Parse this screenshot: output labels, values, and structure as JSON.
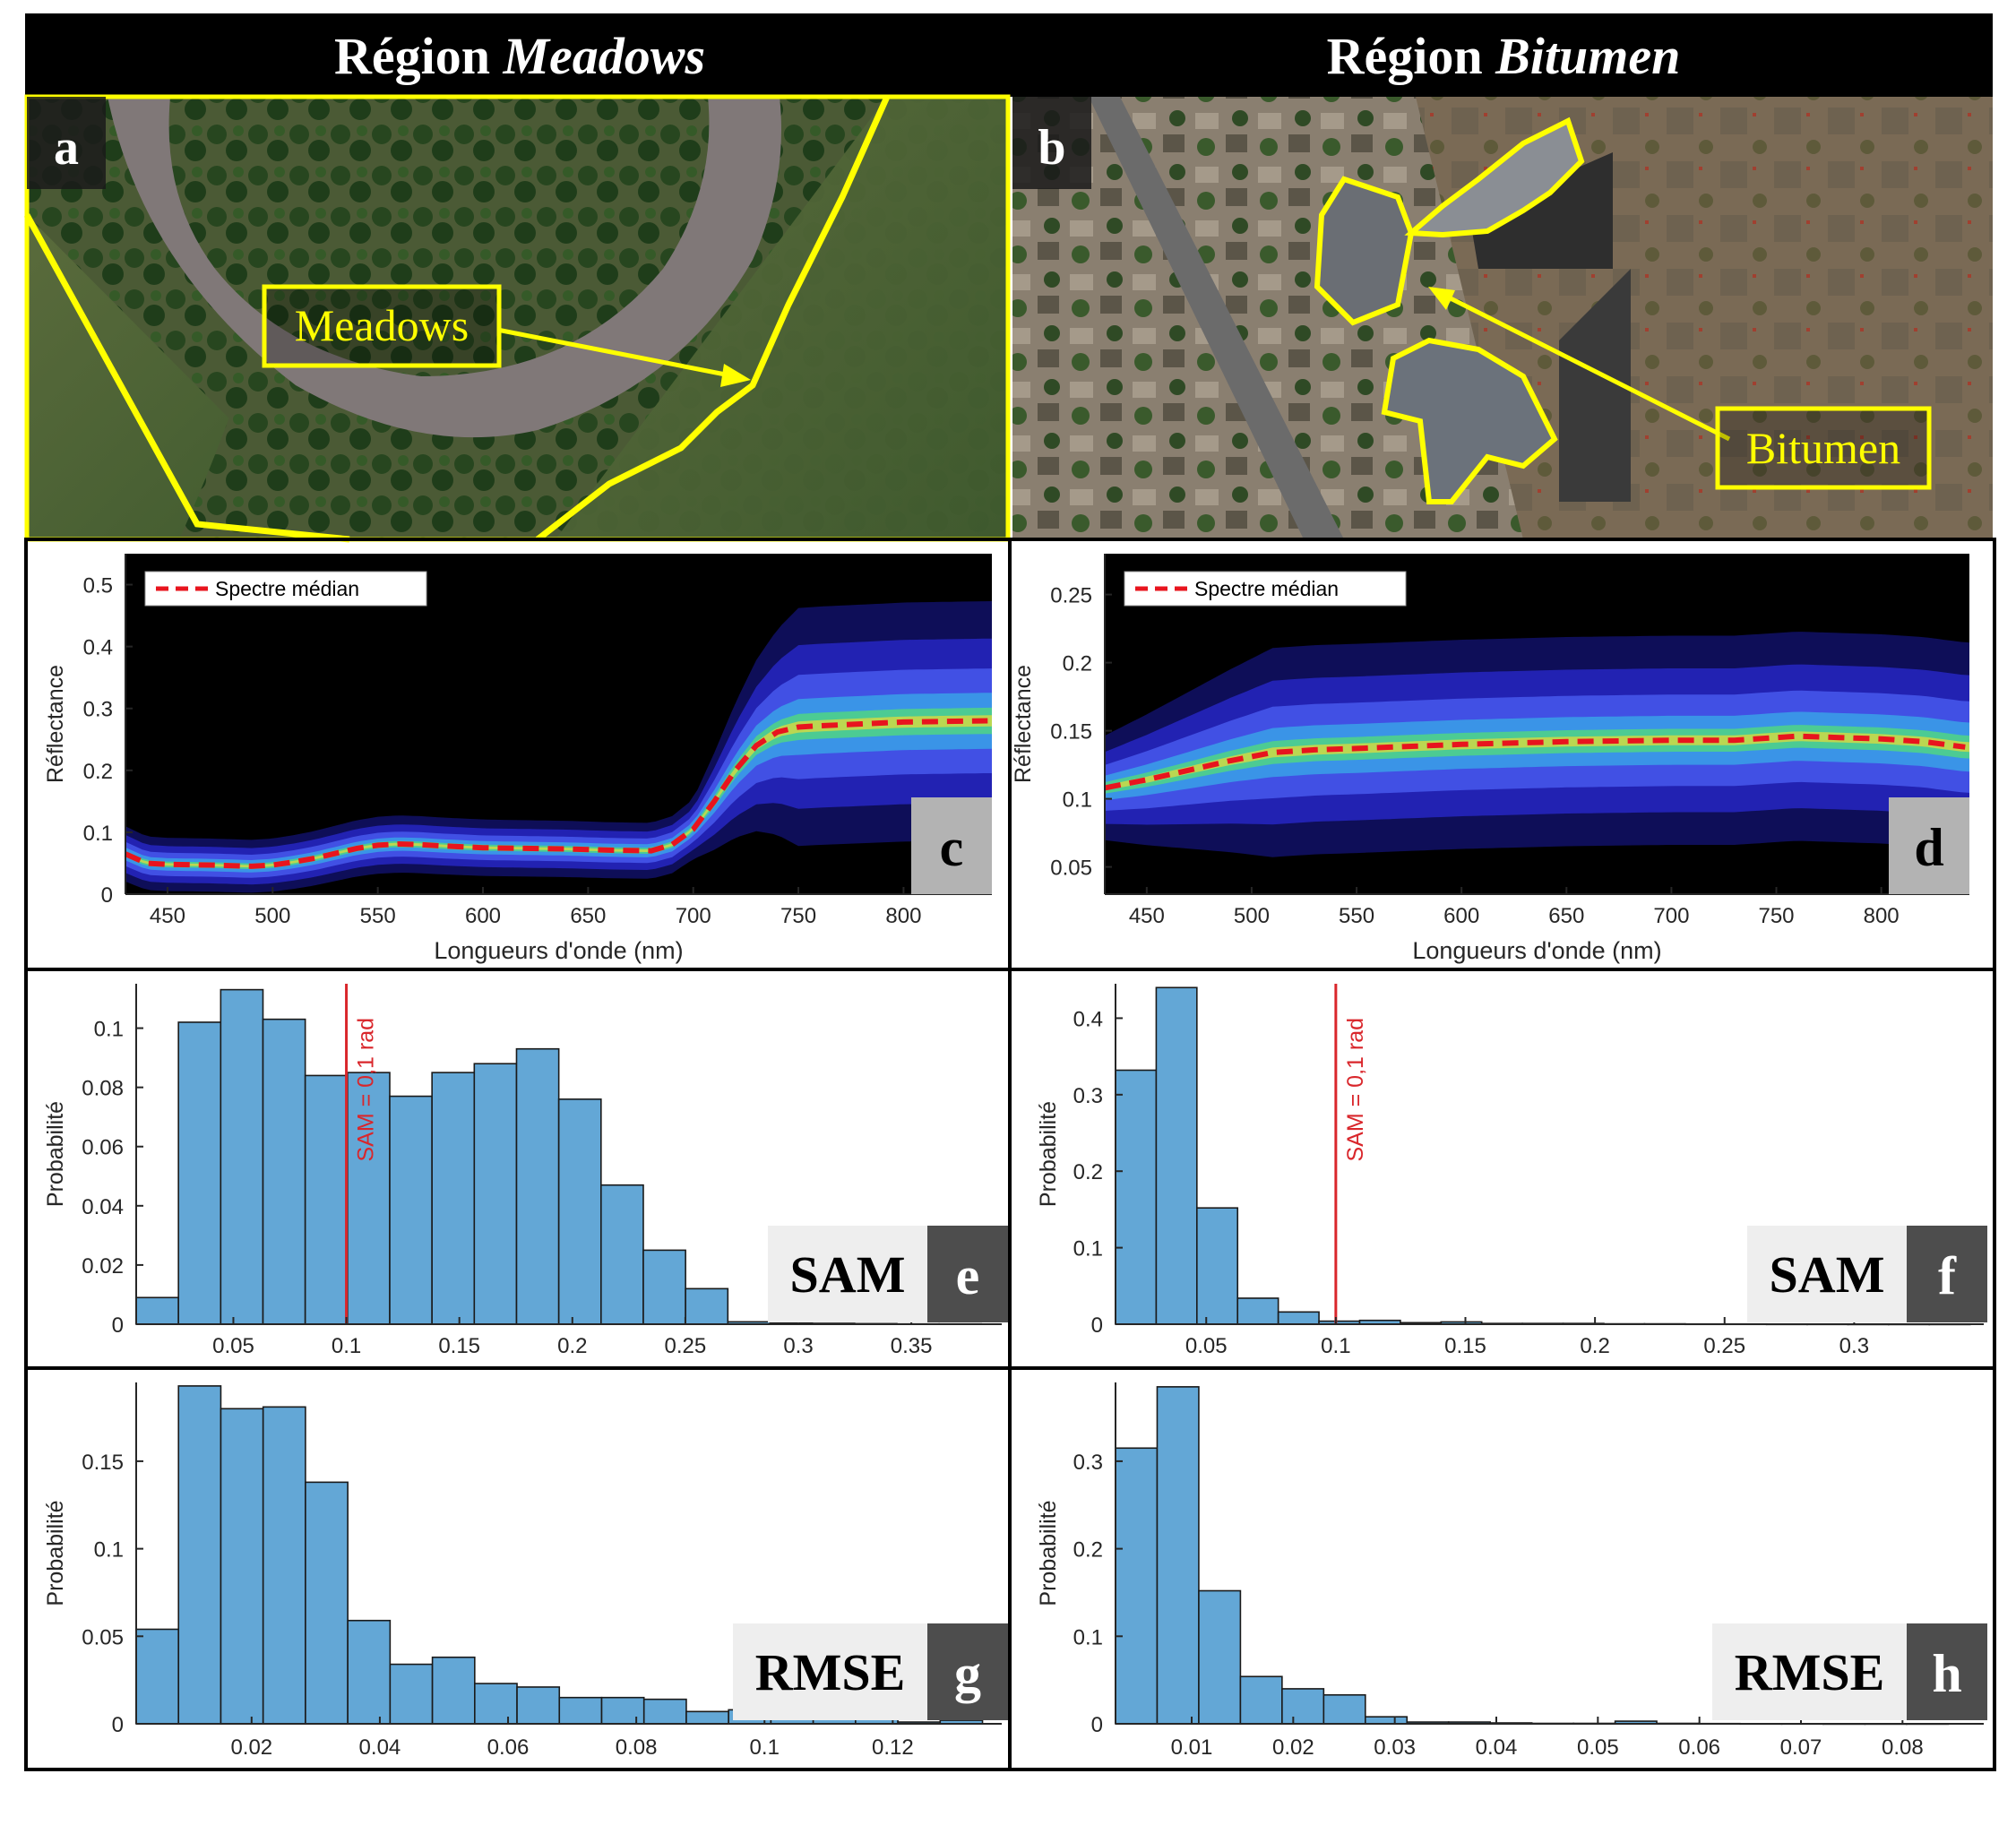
{
  "headers": {
    "left": {
      "prefix": "Région",
      "name": "Meadows"
    },
    "right": {
      "prefix": "Région",
      "name": "Bitumen"
    }
  },
  "panel_letters": {
    "a": "a",
    "b": "b",
    "c": "c",
    "d": "d",
    "e": "e",
    "f": "f",
    "g": "g",
    "h": "h"
  },
  "image_labels": {
    "meadows": "Meadows",
    "bitumen": "Bitumen"
  },
  "metric_tags": {
    "sam": "SAM",
    "rmse": "RMSE"
  },
  "colors": {
    "header_bg": "#000000",
    "header_text": "#ffffff",
    "annotation_yellow": "#ffff00",
    "median_line": "#e8141e",
    "histogram_bar": "#63a7d6",
    "threshold_line": "#d9262b",
    "letter_box_light": "#b3b3b3",
    "letter_box_dark": "#4d4d4d"
  },
  "chart_data": [
    {
      "panel": "c",
      "type": "heatmap",
      "title": "",
      "xlabel": "Longueurs d'onde (nm)",
      "ylabel": "Réflectance",
      "xlim": [
        430,
        842
      ],
      "ylim": [
        0,
        0.55
      ],
      "xticks": [
        450,
        500,
        550,
        600,
        650,
        700,
        750,
        800
      ],
      "yticks": [
        0,
        0.1,
        0.2,
        0.3,
        0.4,
        0.5
      ],
      "ytick_labels": [
        "0",
        "0.1",
        "0.2",
        "0.3",
        "0.4",
        "0.5"
      ],
      "legend": {
        "label": "Spectre médian",
        "placement": "top-left"
      },
      "median": {
        "x": [
          430,
          440,
          450,
          470,
          490,
          500,
          510,
          520,
          530,
          540,
          550,
          560,
          570,
          580,
          600,
          620,
          640,
          660,
          680,
          690,
          700,
          710,
          720,
          730,
          740,
          750,
          760,
          780,
          800,
          820,
          840
        ],
        "y": [
          0.065,
          0.05,
          0.048,
          0.047,
          0.045,
          0.047,
          0.052,
          0.058,
          0.066,
          0.074,
          0.079,
          0.081,
          0.08,
          0.078,
          0.075,
          0.074,
          0.073,
          0.071,
          0.07,
          0.08,
          0.105,
          0.15,
          0.2,
          0.24,
          0.262,
          0.27,
          0.272,
          0.275,
          0.278,
          0.279,
          0.28
        ]
      }
    },
    {
      "panel": "d",
      "type": "heatmap",
      "title": "",
      "xlabel": "Longueurs d'onde (nm)",
      "ylabel": "Réflectance",
      "xlim": [
        430,
        842
      ],
      "ylim": [
        0.03,
        0.28
      ],
      "xticks": [
        450,
        500,
        550,
        600,
        650,
        700,
        750,
        800
      ],
      "yticks": [
        0.05,
        0.1,
        0.15,
        0.2,
        0.25
      ],
      "ytick_labels": [
        "0.05",
        "0.1",
        "0.15",
        "0.2",
        "0.25"
      ],
      "legend": {
        "label": "Spectre médian",
        "placement": "top-left"
      },
      "median": {
        "x": [
          430,
          450,
          470,
          490,
          510,
          530,
          550,
          600,
          650,
          700,
          730,
          760,
          780,
          800,
          820,
          840
        ],
        "y": [
          0.108,
          0.114,
          0.121,
          0.128,
          0.134,
          0.136,
          0.137,
          0.14,
          0.142,
          0.143,
          0.143,
          0.146,
          0.145,
          0.144,
          0.142,
          0.138
        ]
      }
    },
    {
      "panel": "e",
      "type": "bar",
      "title": "",
      "xlabel": "",
      "ylabel": "Probabilité",
      "xlim": [
        0.007,
        0.39
      ],
      "ylim": [
        0,
        0.115
      ],
      "xticks": [
        0.05,
        0.1,
        0.15,
        0.2,
        0.25,
        0.3,
        0.35
      ],
      "xtick_labels": [
        "0.05",
        "0.1",
        "0.15",
        "0.2",
        "0.25",
        "0.3",
        "0.35"
      ],
      "yticks": [
        0,
        0.02,
        0.04,
        0.06,
        0.08,
        0.1
      ],
      "ytick_labels": [
        "0",
        "0.02",
        "0.04",
        "0.06",
        "0.08",
        "0.1"
      ],
      "bin_start": 0.007,
      "bin_width": 0.0187,
      "values": [
        0.009,
        0.102,
        0.113,
        0.103,
        0.084,
        0.085,
        0.077,
        0.085,
        0.088,
        0.093,
        0.076,
        0.047,
        0.025,
        0.012,
        0.0008,
        0.0004,
        0.0003,
        0.0002,
        0.0001,
        0.0001
      ],
      "threshold": {
        "x": 0.1,
        "label": "SAM = 0,1 rad"
      }
    },
    {
      "panel": "f",
      "type": "bar",
      "title": "",
      "xlabel": "",
      "ylabel": "Probabilité",
      "xlim": [
        0.015,
        0.35
      ],
      "ylim": [
        0,
        0.445
      ],
      "xticks": [
        0.05,
        0.1,
        0.15,
        0.2,
        0.25,
        0.3
      ],
      "xtick_labels": [
        "0.05",
        "0.1",
        "0.15",
        "0.2",
        "0.25",
        "0.3"
      ],
      "yticks": [
        0,
        0.1,
        0.2,
        0.3,
        0.4
      ],
      "ytick_labels": [
        "0",
        "0.1",
        "0.2",
        "0.3",
        "0.4"
      ],
      "bin_start": 0.015,
      "bin_width": 0.0157,
      "values": [
        0.332,
        0.44,
        0.152,
        0.034,
        0.016,
        0.004,
        0.005,
        0.002,
        0.003,
        0.001,
        0.001,
        0.001,
        0.0005,
        0.0005,
        0.0003,
        0.0003,
        0.0002,
        0.0002,
        0.0001,
        0.0001,
        0.0001
      ],
      "threshold": {
        "x": 0.1,
        "label": "SAM = 0,1 rad"
      }
    },
    {
      "panel": "g",
      "type": "bar",
      "title": "",
      "xlabel": "",
      "ylabel": "Probabilité",
      "xlim": [
        0.002,
        0.137
      ],
      "ylim": [
        0,
        0.195
      ],
      "xticks": [
        0.02,
        0.04,
        0.06,
        0.08,
        0.1,
        0.12
      ],
      "xtick_labels": [
        "0.02",
        "0.04",
        "0.06",
        "0.08",
        "0.1",
        "0.12"
      ],
      "yticks": [
        0,
        0.05,
        0.1,
        0.15
      ],
      "ytick_labels": [
        "0",
        "0.05",
        "0.1",
        "0.15"
      ],
      "bin_start": 0.002,
      "bin_width": 0.0066,
      "values": [
        0.054,
        0.193,
        0.18,
        0.181,
        0.138,
        0.059,
        0.034,
        0.038,
        0.023,
        0.021,
        0.015,
        0.015,
        0.014,
        0.007,
        0.008,
        0.006,
        0.005,
        0.004,
        0.001,
        0.002
      ]
    },
    {
      "panel": "h",
      "type": "bar",
      "title": "",
      "xlabel": "",
      "ylabel": "Probabilité",
      "xlim": [
        0.0025,
        0.088
      ],
      "ylim": [
        0,
        0.39
      ],
      "xticks": [
        0.01,
        0.02,
        0.03,
        0.04,
        0.05,
        0.06,
        0.07,
        0.08
      ],
      "xtick_labels": [
        "0.01",
        "0.02",
        "0.03",
        "0.04",
        "0.05",
        "0.06",
        "0.07",
        "0.08"
      ],
      "yticks": [
        0,
        0.1,
        0.2,
        0.3
      ],
      "ytick_labels": [
        "0",
        "0.1",
        "0.2",
        "0.3"
      ],
      "bin_start": 0.0025,
      "bin_width": 0.0041,
      "values": [
        0.315,
        0.385,
        0.152,
        0.054,
        0.04,
        0.033,
        0.008,
        0.002,
        0.002,
        0.001,
        0.0005,
        0.0005,
        0.003,
        0.0005,
        0.0003,
        0.0002,
        0.0002,
        0.0001,
        0.0001,
        0.0001
      ]
    }
  ]
}
